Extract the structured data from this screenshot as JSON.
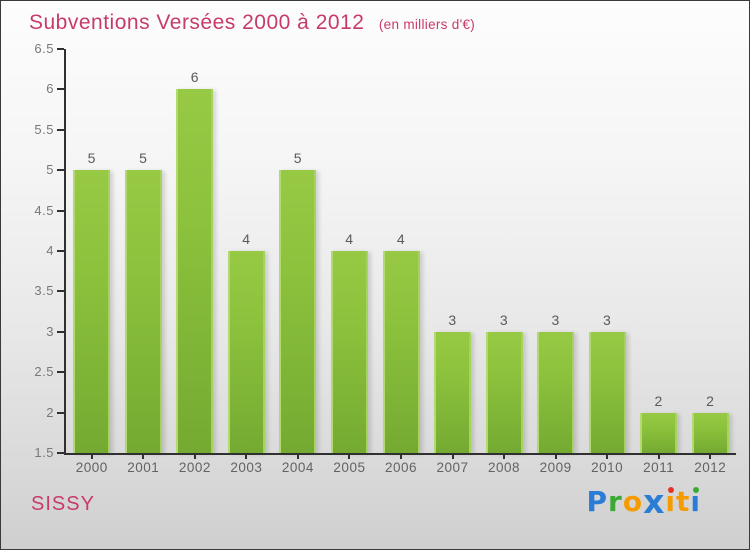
{
  "header": {
    "title": "Subventions Versées 2000 à 2012",
    "subtitle": "(en milliers d'€)"
  },
  "footer": {
    "location": "SISSY",
    "brand": {
      "name": "Proxiti",
      "letters": [
        {
          "ch": "P",
          "color": "#2b7cd6"
        },
        {
          "ch": "r",
          "color": "#3aaa35"
        },
        {
          "ch": "o",
          "color": "#f59b00"
        },
        {
          "ch": "x",
          "color": "#2b7cd6",
          "big": true
        },
        {
          "ch": "i",
          "color": "#f59b00",
          "dot": "#e63329"
        },
        {
          "ch": "t",
          "color": "#f59b00"
        },
        {
          "ch": "i",
          "color": "#2b7cd6",
          "dot": "#3aaa35"
        }
      ]
    }
  },
  "chart_data": {
    "type": "bar",
    "title": "Subventions Versées 2000 à 2012",
    "subtitle": "(en milliers d'€)",
    "categories": [
      "2000",
      "2001",
      "2002",
      "2003",
      "2004",
      "2005",
      "2006",
      "2007",
      "2008",
      "2009",
      "2010",
      "2011",
      "2012"
    ],
    "values": [
      5,
      5,
      6,
      4,
      5,
      4,
      4,
      3,
      3,
      3,
      3,
      2,
      2
    ],
    "xlabel": "",
    "ylabel": "",
    "ylim": [
      1.5,
      6.5
    ],
    "ytick_step": 0.5,
    "grid": false,
    "legend": false,
    "bar_color_top": "#97c944",
    "bar_color_bottom": "#74aa31",
    "title_color": "#c73b6b",
    "value_label_color": "#5a5a5a",
    "tick_label_color": "#787878",
    "axis_color": "#303030"
  }
}
